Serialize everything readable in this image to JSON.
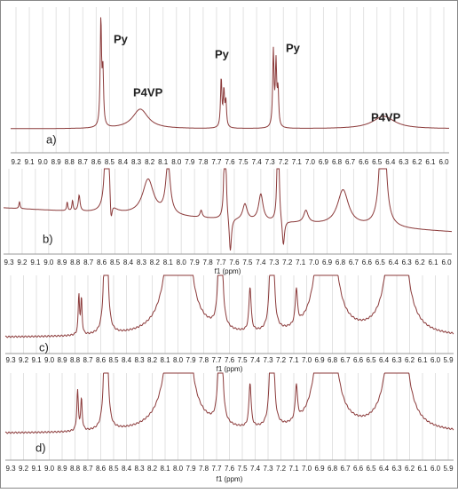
{
  "panels": [
    {
      "label": "a)",
      "annotations": [
        "Py",
        "P4VP",
        "Py",
        "Py",
        "P4VP"
      ],
      "ticks": [
        "9.2",
        "9.1",
        "9.0",
        "8.9",
        "8.8",
        "8.7",
        "8.6",
        "8.5",
        "8.4",
        "8.3",
        "8.2",
        "8.1",
        "8.0",
        "7.9",
        "7.8",
        "7.7",
        "7.6",
        "7.5",
        "7.4",
        "7.3",
        "7.2",
        "7.1",
        "7.0",
        "6.9",
        "6.8",
        "6.7",
        "6.6",
        "6.5",
        "6.4",
        "6.3",
        "6.2",
        "6.1",
        "6.0"
      ]
    },
    {
      "label": "b)",
      "axis_title": "f1 (ppm)",
      "ticks": [
        "9.3",
        "9.2",
        "9.1",
        "9.0",
        "8.9",
        "8.8",
        "8.7",
        "8.6",
        "8.5",
        "8.4",
        "8.3",
        "8.2",
        "8.1",
        "8.0",
        "7.9",
        "7.8",
        "7.7",
        "7.6",
        "7.5",
        "7.4",
        "7.3",
        "7.2",
        "7.1",
        "7.0",
        "6.9",
        "6.8",
        "6.7",
        "6.6",
        "6.5",
        "6.4",
        "6.3",
        "6.2",
        "6.1",
        "6.0"
      ]
    },
    {
      "label": "c)",
      "axis_title": "f1 (ppm)",
      "ticks": [
        "9.3",
        "9.2",
        "9.1",
        "9.0",
        "8.9",
        "8.8",
        "8.7",
        "8.6",
        "8.5",
        "8.4",
        "8.3",
        "8.2",
        "8.1",
        "8.0",
        "7.9",
        "7.8",
        "7.7",
        "7.6",
        "7.5",
        "7.4",
        "7.3",
        "7.2",
        "7.1",
        "7.0",
        "6.9",
        "6.8",
        "6.7",
        "6.6",
        "6.5",
        "6.4",
        "6.3",
        "6.2",
        "6.1",
        "6.0",
        "5.9"
      ]
    },
    {
      "label": "d)",
      "axis_title": "f1 (ppm)",
      "ticks": [
        "9.3",
        "9.2",
        "9.1",
        "9.0",
        "8.9",
        "8.8",
        "8.7",
        "8.6",
        "8.5",
        "8.4",
        "8.3",
        "8.2",
        "8.1",
        "8.0",
        "7.9",
        "7.8",
        "7.7",
        "7.6",
        "7.5",
        "7.4",
        "7.3",
        "7.2",
        "7.1",
        "7.0",
        "6.9",
        "6.8",
        "6.7",
        "6.6",
        "6.5",
        "6.4",
        "6.3",
        "6.2",
        "6.1",
        "6.0",
        "5.9"
      ]
    }
  ]
}
